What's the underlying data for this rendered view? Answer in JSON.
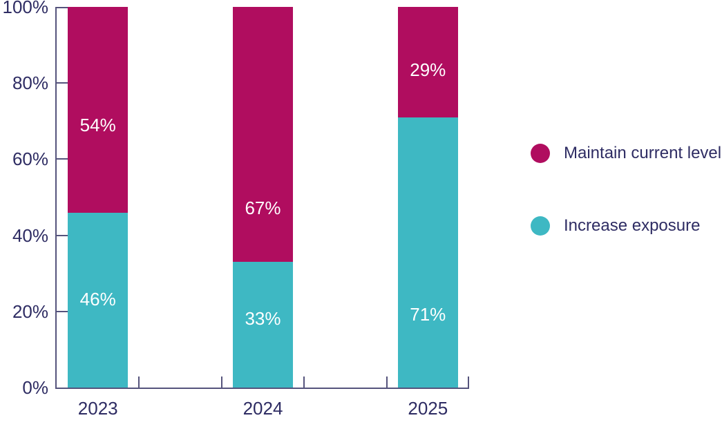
{
  "chart_data": {
    "type": "bar",
    "stacked": true,
    "title": "",
    "categories": [
      "2023",
      "2024",
      "2025"
    ],
    "series": [
      {
        "name": "Increase exposure",
        "color": "#3EB8C3",
        "values": [
          46,
          33,
          71
        ],
        "labels": [
          "46%",
          "33%",
          "71%"
        ],
        "label_y_pct": [
          23.2,
          18.1,
          19.2
        ]
      },
      {
        "name": "Maintain current level",
        "color": "#B00D5F",
        "values": [
          54,
          67,
          29
        ],
        "labels": [
          "54%",
          "67%",
          "29%"
        ],
        "label_y_pct": [
          69.0,
          47.2,
          83.5
        ]
      }
    ],
    "y_axis": {
      "min": 0,
      "max": 100,
      "tick_step": 20,
      "tick_labels": [
        "0%",
        "20%",
        "40%",
        "60%",
        "80%",
        "100%"
      ]
    },
    "x_axis": {
      "tick_slots": 5,
      "bar_slots": [
        0,
        2,
        4
      ]
    },
    "legend": {
      "position": "right",
      "items": [
        {
          "label": "Maintain current level",
          "color": "#B00D5F"
        },
        {
          "label": "Increase exposure",
          "color": "#3EB8C3"
        }
      ]
    },
    "grid": "off",
    "styles": {
      "axis_color": "#55537C",
      "text_color": "#2E2C63",
      "bar_label_color": "#FFFFFF",
      "background": "#FFFFFF"
    }
  }
}
